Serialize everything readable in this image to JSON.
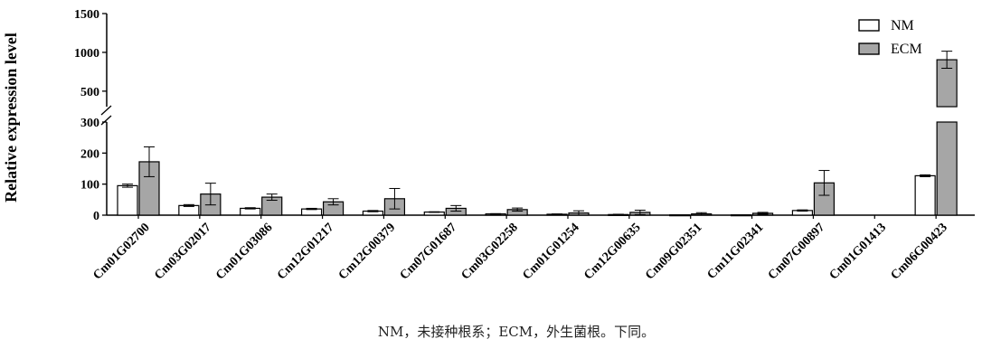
{
  "chart_data": {
    "type": "bar",
    "ylabel": "Relative expression level",
    "y_axis_break": {
      "lower_range": [
        0,
        300
      ],
      "upper_range": [
        300,
        1500
      ]
    },
    "yticks_lower": [
      0,
      100,
      200,
      300
    ],
    "yticks_upper": [
      500,
      1000,
      1500
    ],
    "categories": [
      "Cm01G02700",
      "Cm03G02017",
      "Cm01G03086",
      "Cm12G01217",
      "Cm12G00379",
      "Cm07G01687",
      "Cm03G02258",
      "Cm01G01254",
      "Cm12G00635",
      "Cm09G02351",
      "Cm11G02341",
      "Cm07G00897",
      "Cm01G01413",
      "Cm06G00423"
    ],
    "series": [
      {
        "name": "NM",
        "color": "#ffffff",
        "values": [
          95,
          31,
          22,
          20,
          13,
          10,
          4,
          3,
          2,
          1,
          1,
          15,
          0,
          127
        ],
        "errors": [
          5,
          3,
          2,
          2,
          2,
          1,
          1,
          1,
          1,
          0,
          0,
          2,
          0,
          3
        ]
      },
      {
        "name": "ECM",
        "color": "#a6a6a6",
        "values": [
          172,
          68,
          58,
          43,
          53,
          22,
          18,
          7,
          9,
          4,
          6,
          104,
          0,
          905
        ],
        "errors": [
          48,
          35,
          10,
          10,
          33,
          9,
          5,
          7,
          7,
          4,
          3,
          40,
          0,
          110
        ]
      }
    ],
    "legend_position": "top-right",
    "grid": false
  },
  "caption": "NM，未接种根系；ECM，外生菌根。下同。"
}
